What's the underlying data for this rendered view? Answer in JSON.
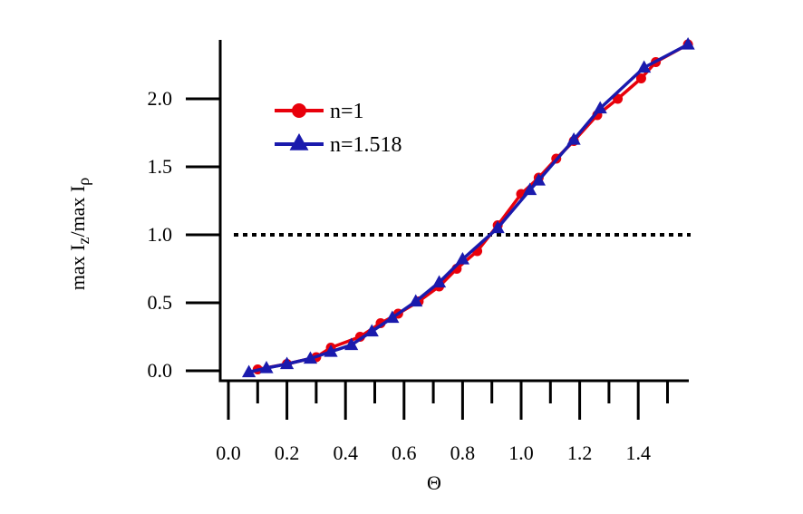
{
  "chart_data": {
    "type": "line",
    "xlabel": "Θ",
    "ylabel": "max I_z /max I_ρ",
    "xlim": [
      0.0,
      1.57
    ],
    "ylim": [
      0.0,
      2.4
    ],
    "xticks": [
      "0.0",
      "0.2",
      "0.4",
      "0.6",
      "0.8",
      "1.0",
      "1.2",
      "1.4"
    ],
    "yticks": [
      "0.0",
      "0.5",
      "1.0",
      "1.5",
      "2.0"
    ],
    "reference_line": {
      "y": 1.0,
      "style": "dotted"
    },
    "legend_position": "top-left",
    "series": [
      {
        "name": "n=1",
        "color": "#e8000b",
        "marker": "circle",
        "x": [
          0.1,
          0.2,
          0.3,
          0.35,
          0.45,
          0.52,
          0.58,
          0.65,
          0.72,
          0.78,
          0.85,
          0.92,
          1.0,
          1.06,
          1.12,
          1.18,
          1.26,
          1.33,
          1.41,
          1.46,
          1.57
        ],
        "y": [
          0.01,
          0.05,
          0.1,
          0.17,
          0.25,
          0.35,
          0.42,
          0.51,
          0.62,
          0.75,
          0.88,
          1.07,
          1.3,
          1.42,
          1.56,
          1.69,
          1.88,
          2.0,
          2.15,
          2.27,
          2.4
        ]
      },
      {
        "name": "n=1.518",
        "color": "#1a1aad",
        "marker": "triangle",
        "x": [
          0.07,
          0.13,
          0.2,
          0.28,
          0.35,
          0.42,
          0.49,
          0.56,
          0.64,
          0.72,
          0.8,
          0.92,
          1.03,
          1.06,
          1.18,
          1.27,
          1.42,
          1.57
        ],
        "y": [
          -0.01,
          0.02,
          0.05,
          0.09,
          0.14,
          0.19,
          0.29,
          0.39,
          0.51,
          0.65,
          0.82,
          1.05,
          1.33,
          1.4,
          1.7,
          1.93,
          2.23,
          2.4
        ]
      }
    ]
  }
}
